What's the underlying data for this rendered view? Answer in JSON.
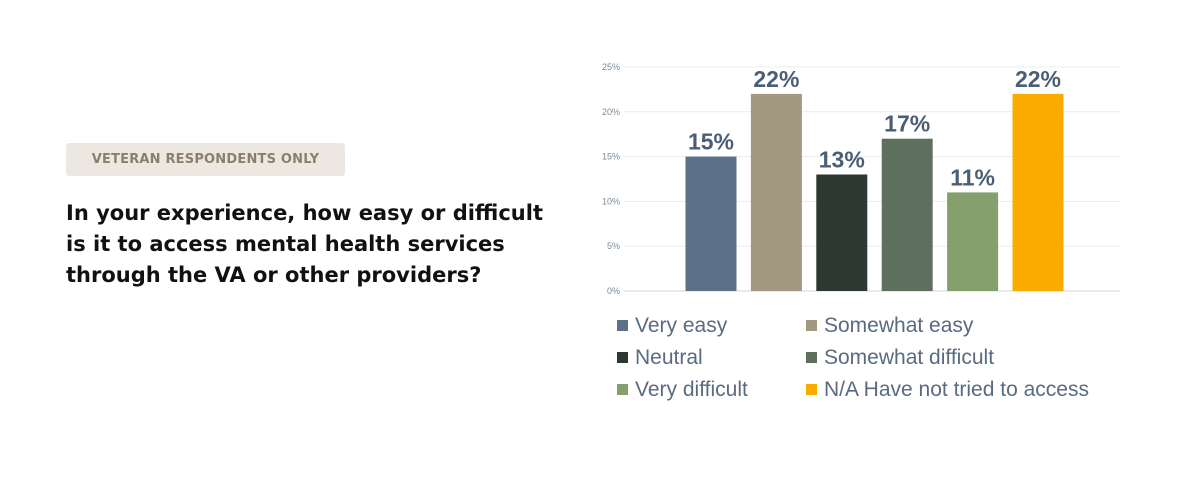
{
  "badge": "VETERAN RESPONDENTS ONLY",
  "question": "In your experience, how easy or difficult is it to access mental health services through the VA or other providers?",
  "chart_data": {
    "type": "bar",
    "categories": [
      "Very easy",
      "Somewhat easy",
      "Neutral",
      "Somewhat difficult",
      "Very difficult",
      "N/A Have not tried to access"
    ],
    "values": [
      15,
      22,
      13,
      17,
      11,
      22
    ],
    "value_labels": [
      "15%",
      "22%",
      "13%",
      "17%",
      "11%",
      "22%"
    ],
    "colors": [
      "#5a7188",
      "#a39880",
      "#2c3830",
      "#5f6f5e",
      "#85a06d",
      "#fbaa00"
    ],
    "yticks": [
      "0%",
      "5%",
      "10%",
      "15%",
      "20%",
      "25%"
    ],
    "ylim": [
      0,
      25
    ],
    "grid": true,
    "legend_position": "bottom"
  }
}
